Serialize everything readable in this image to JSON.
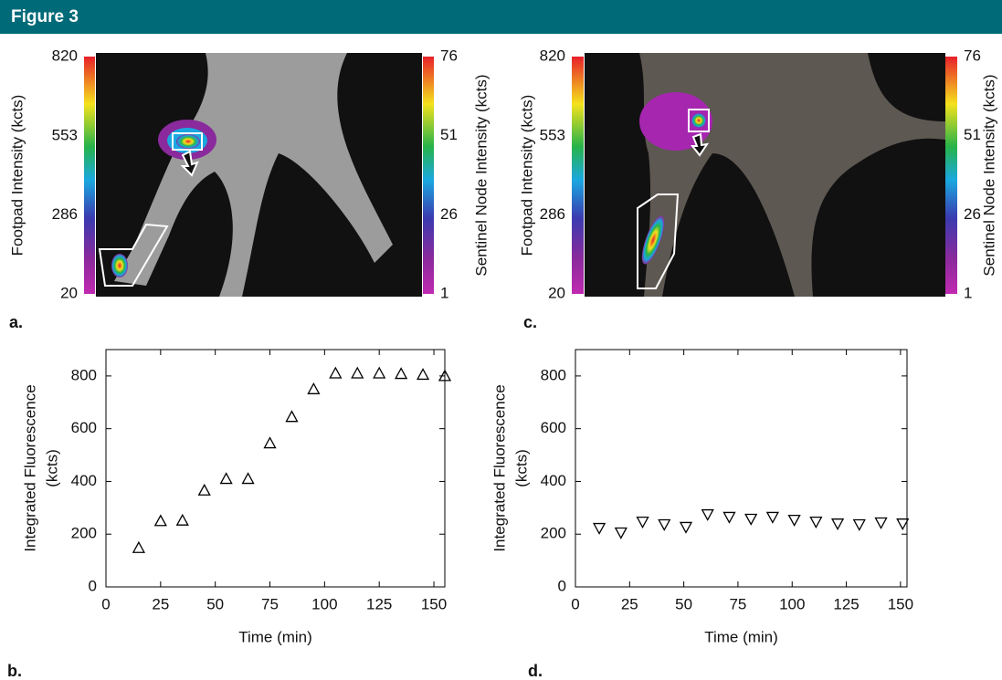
{
  "header": {
    "title": "Figure 3"
  },
  "images": [
    {
      "label": "a.",
      "left_axis": {
        "title": "Footpad Intensity (kcts)",
        "ticks": [
          820,
          553,
          286,
          20
        ]
      },
      "right_axis": {
        "title": "Sentinel Node Intensity (kcts)",
        "ticks": [
          76,
          51,
          26,
          1
        ]
      }
    },
    {
      "label": "c.",
      "left_axis": {
        "title": "Footpad Intensity (kcts)",
        "ticks": [
          820,
          553,
          286,
          20
        ]
      },
      "right_axis": {
        "title": "Sentinel Node Intensity (kcts)",
        "ticks": [
          76,
          51,
          26,
          1
        ]
      }
    }
  ],
  "chart_data": [
    {
      "type": "scatter",
      "label": "b.",
      "x_label": "Time (min)",
      "y_label": [
        "Integrated Fluorescence",
        "(kcts)"
      ],
      "x": [
        15,
        25,
        35,
        45,
        55,
        65,
        75,
        85,
        95,
        105,
        115,
        125,
        135,
        145,
        155
      ],
      "values": [
        148,
        250,
        252,
        366,
        410,
        410,
        545,
        645,
        750,
        810,
        810,
        810,
        808,
        805,
        800
      ],
      "marker": "triangle-up",
      "color": "#000000",
      "xlim": [
        0,
        155
      ],
      "ylim": [
        0,
        900
      ],
      "xticks": [
        0,
        25,
        50,
        75,
        100,
        125,
        150
      ],
      "yticks": [
        0,
        200,
        400,
        600,
        800
      ]
    },
    {
      "type": "scatter",
      "label": "d.",
      "x_label": "Time (min)",
      "y_label": [
        "Integrated Fluorescence",
        "(kcts)"
      ],
      "x": [
        11,
        21,
        31,
        41,
        51,
        61,
        71,
        81,
        91,
        101,
        111,
        121,
        131,
        141,
        151
      ],
      "values": [
        223,
        206,
        247,
        237,
        227,
        275,
        265,
        258,
        265,
        254,
        247,
        240,
        237,
        244,
        240
      ],
      "marker": "triangle-down",
      "color": "#000000",
      "xlim": [
        0,
        153
      ],
      "ylim": [
        0,
        900
      ],
      "xticks": [
        0,
        25,
        50,
        75,
        100,
        125,
        150
      ],
      "yticks": [
        0,
        200,
        400,
        600,
        800
      ]
    }
  ]
}
